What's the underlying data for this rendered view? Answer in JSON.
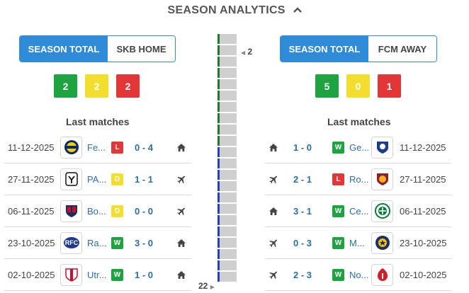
{
  "header": {
    "title": "SEASON ANALYTICS"
  },
  "left": {
    "toggle": {
      "active": "SEASON TOTAL",
      "inactive": "SKB HOME"
    },
    "counts": {
      "wins": "2",
      "draws": "2",
      "losses": "2"
    },
    "last_title": "Last matches",
    "matches": [
      {
        "date": "11-12-2025",
        "team": "Fe...",
        "result": "L",
        "score": "0 - 4",
        "venue": "home",
        "logo": "fenerbahce-logo"
      },
      {
        "date": "27-11-2025",
        "team": "PA...",
        "result": "D",
        "score": "1 - 1",
        "venue": "away",
        "logo": "paok-logo"
      },
      {
        "date": "06-11-2025",
        "team": "Bo...",
        "result": "D",
        "score": "0 - 0",
        "venue": "away",
        "logo": "bologna-logo"
      },
      {
        "date": "23-10-2025",
        "team": "Ra...",
        "result": "W",
        "score": "3 - 0",
        "venue": "home",
        "logo": "rangers-logo"
      },
      {
        "date": "02-10-2025",
        "team": "Utr...",
        "result": "W",
        "score": "1 - 0",
        "venue": "home",
        "logo": "utrecht-logo"
      }
    ]
  },
  "right": {
    "toggle": {
      "active": "SEASON TOTAL",
      "inactive": "FCM AWAY"
    },
    "counts": {
      "wins": "5",
      "draws": "0",
      "losses": "1"
    },
    "last_title": "Last matches",
    "matches": [
      {
        "date": "11-12-2025",
        "team": "Ge...",
        "result": "W",
        "score": "1 - 0",
        "venue": "home",
        "logo": "genk-logo"
      },
      {
        "date": "27-11-2025",
        "team": "Ro...",
        "result": "L",
        "score": "2 - 1",
        "venue": "away",
        "logo": "roma-logo"
      },
      {
        "date": "06-11-2025",
        "team": "Ce...",
        "result": "W",
        "score": "3 - 1",
        "venue": "home",
        "logo": "celtic-logo"
      },
      {
        "date": "23-10-2025",
        "team": "M...",
        "result": "W",
        "score": "0 - 3",
        "venue": "away",
        "logo": "maccabi-logo"
      },
      {
        "date": "02-10-2025",
        "team": "No...",
        "result": "W",
        "score": "2 - 3",
        "venue": "away",
        "logo": "nottingham-logo"
      }
    ]
  },
  "timeline": {
    "top_label": "2",
    "bottom_label": "22",
    "colors": {
      "green": "#1f7a2e",
      "blue": "#1f3fcf",
      "bar": "#cfcfcf"
    },
    "segments": [
      "green",
      "green",
      "green",
      "green",
      "green",
      "green",
      "green",
      "green",
      "green",
      "green",
      "blue",
      "blue",
      "blue",
      "blue",
      "blue",
      "blue",
      "blue",
      "blue",
      "blue",
      "blue",
      "blue",
      "blue"
    ]
  },
  "colors": {
    "accent": "#2f8bd8",
    "win": "#1da33f",
    "draw": "#f3dd2e",
    "loss": "#e33636",
    "link": "#2d6ea8"
  }
}
